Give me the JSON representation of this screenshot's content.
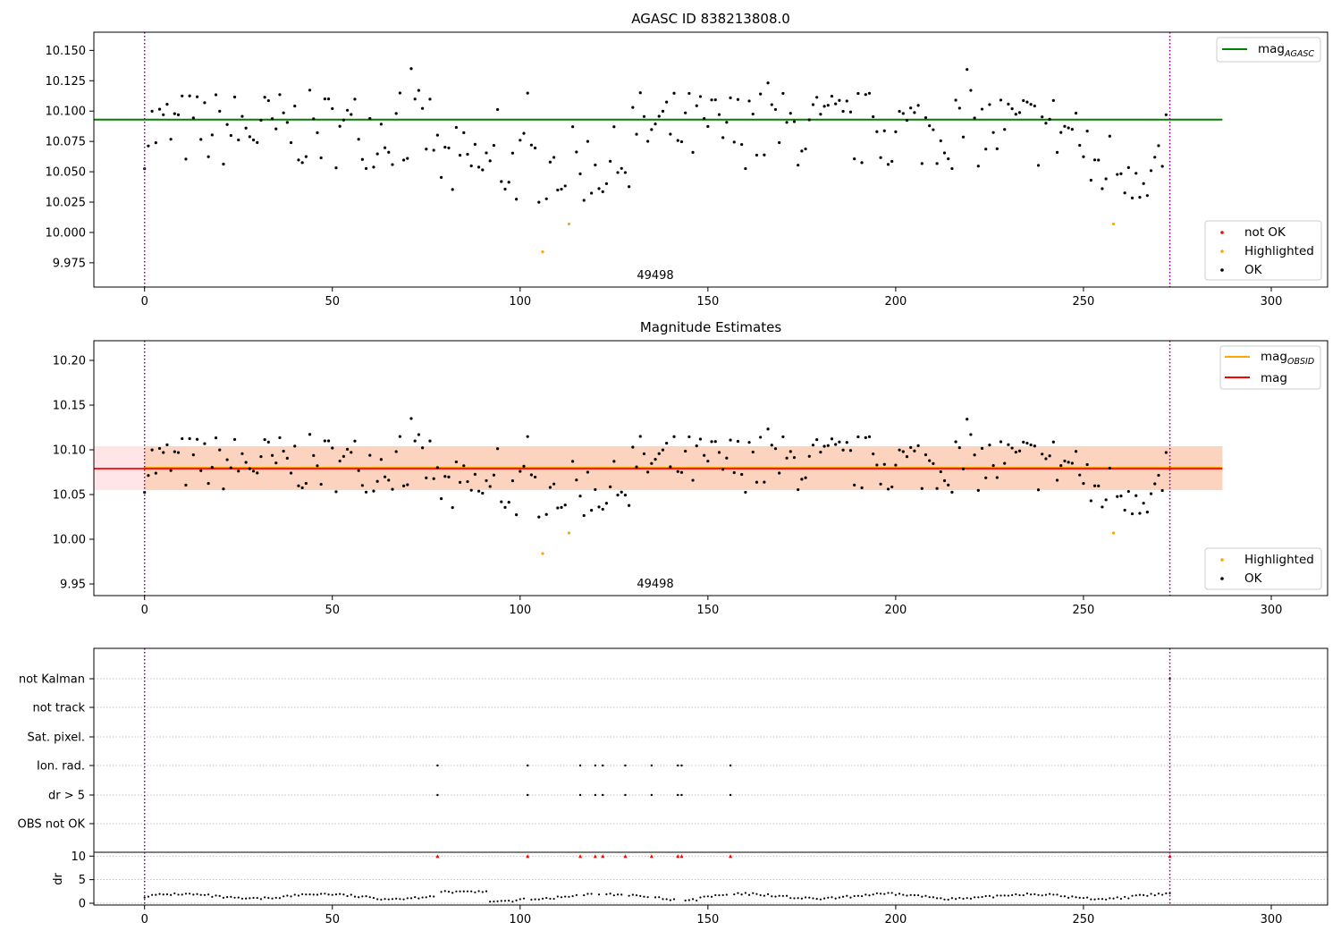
{
  "chart_data": [
    {
      "id": "top",
      "type": "scatter",
      "title": "AGASC ID 838213808.0",
      "annotation": "49498",
      "xlim": [
        -13.5,
        315
      ],
      "ylim": [
        9.955,
        10.165
      ],
      "xticks": [
        0,
        50,
        100,
        150,
        200,
        250,
        300
      ],
      "yticks": [
        9.975,
        10.0,
        10.025,
        10.05,
        10.075,
        10.1,
        10.125,
        10.15
      ],
      "ytick_labels": [
        "9.975",
        "10.000",
        "10.025",
        "10.050",
        "10.075",
        "10.100",
        "10.125",
        "10.150"
      ],
      "vlines": [
        0,
        273
      ],
      "hline": {
        "y": 10.093,
        "x": [
          -13.5,
          287
        ],
        "color": "#008000"
      },
      "legend_lines": [
        {
          "label": "mag",
          "sub": "AGASC",
          "color": "#008000"
        }
      ],
      "legend_points": [
        {
          "label": "not OK",
          "color": "#ff0000"
        },
        {
          "label": "Highlighted",
          "color": "#ffa500"
        },
        {
          "label": "OK",
          "color": "#000000"
        }
      ],
      "highlighted": [
        [
          106,
          9.984
        ],
        [
          113,
          10.007
        ],
        [
          258,
          10.007
        ]
      ]
    },
    {
      "id": "middle",
      "type": "scatter",
      "title": "Magnitude Estimates",
      "annotation": "49498",
      "xlim": [
        -13.5,
        315
      ],
      "ylim": [
        9.937,
        10.222
      ],
      "xticks": [
        0,
        50,
        100,
        150,
        200,
        250,
        300
      ],
      "yticks": [
        9.95,
        10.0,
        10.05,
        10.1,
        10.15,
        10.2
      ],
      "ytick_labels": [
        "9.95",
        "10.00",
        "10.05",
        "10.10",
        "10.15",
        "10.20"
      ],
      "vlines": [
        0,
        273
      ],
      "band_outer": {
        "y": [
          10.055,
          10.104
        ],
        "x": [
          -13.5,
          287
        ],
        "color": "#ffe4e8"
      },
      "band_inner": {
        "y": [
          10.055,
          10.104
        ],
        "x": [
          0,
          287
        ],
        "color": "#fbd3bf"
      },
      "hline_obsid": {
        "y": 10.08,
        "x": [
          0,
          287
        ],
        "color": "#ffa500"
      },
      "hline_mag": {
        "y": 10.079,
        "x": [
          -13.5,
          287
        ],
        "color": "#ff0000"
      },
      "legend_lines": [
        {
          "label": "mag",
          "sub": "OBSID",
          "color": "#ffa500"
        },
        {
          "label": "mag",
          "sub": "",
          "color": "#ff0000"
        }
      ],
      "legend_points": [
        {
          "label": "Highlighted",
          "color": "#ffa500"
        },
        {
          "label": "OK",
          "color": "#000000"
        }
      ],
      "highlighted": [
        [
          106,
          9.984
        ],
        [
          113,
          10.007
        ],
        [
          258,
          10.007
        ]
      ]
    },
    {
      "id": "flags",
      "type": "scatter",
      "xlim": [
        -13.5,
        315
      ],
      "xticks": [
        0,
        50,
        100,
        150,
        200,
        250,
        300
      ],
      "vlines": [
        0,
        273
      ],
      "categories": [
        "not Kalman",
        "not track",
        "Sat. pixel.",
        "Ion. rad.",
        "dr > 5",
        "OBS not OK"
      ],
      "flag_x": [
        78,
        102,
        116,
        120,
        122,
        128,
        135,
        142,
        143,
        156
      ],
      "flag_rows": [
        "Ion. rad.",
        "dr > 5"
      ],
      "dr": {
        "ylabel": "dr",
        "ylim": [
          0,
          11
        ],
        "yticks": [
          0,
          5,
          10
        ],
        "ytick_labels": [
          "0",
          "5",
          "10"
        ],
        "clipped_marker_y": 10,
        "clipped_color": "#ff0000"
      }
    }
  ]
}
